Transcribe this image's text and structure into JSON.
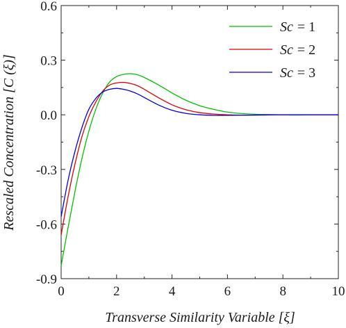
{
  "chart_data": {
    "type": "line",
    "title": "",
    "xlabel": "Transverse Similarity Variable [ξ]",
    "ylabel": "Rescaled Concentration [C (ξ)]",
    "xlim": [
      0,
      10
    ],
    "ylim": [
      -0.9,
      0.6
    ],
    "xticks": [
      "0",
      "2",
      "4",
      "6",
      "8",
      "10"
    ],
    "yticks": [
      "0.6",
      "0.3",
      "0.0",
      "-0.3",
      "-0.6",
      "-0.9"
    ],
    "grid": false,
    "legend_position": "top-right",
    "series": [
      {
        "name": "Sc = 1",
        "legend_symbol": "Sc",
        "legend_value": "= 1",
        "color": "#00c000",
        "x": [
          0,
          0.25,
          0.5,
          0.75,
          1.0,
          1.25,
          1.5,
          1.75,
          2.0,
          2.25,
          2.5,
          2.75,
          3.0,
          3.5,
          4.0,
          4.5,
          5.0,
          5.5,
          6.0,
          6.5,
          7.0,
          7.5,
          8.0,
          8.5,
          9.0,
          9.5,
          10.0
        ],
        "y": [
          -0.83,
          -0.62,
          -0.42,
          -0.24,
          -0.09,
          0.03,
          0.12,
          0.18,
          0.21,
          0.222,
          0.226,
          0.22,
          0.205,
          0.165,
          0.12,
          0.08,
          0.05,
          0.03,
          0.015,
          0.007,
          0.003,
          0.001,
          0.0,
          -0.001,
          0.0,
          0.0,
          0.0
        ]
      },
      {
        "name": "Sc = 2",
        "legend_symbol": "Sc",
        "legend_value": "= 2",
        "color": "#e00000",
        "x": [
          0,
          0.25,
          0.5,
          0.75,
          1.0,
          1.25,
          1.5,
          1.75,
          2.0,
          2.25,
          2.5,
          2.75,
          3.0,
          3.5,
          4.0,
          4.5,
          5.0,
          5.5,
          6.0,
          6.5,
          7.0,
          7.5,
          8.0,
          8.5,
          9.0,
          9.5,
          10.0
        ],
        "y": [
          -0.66,
          -0.45,
          -0.27,
          -0.12,
          -0.01,
          0.07,
          0.13,
          0.163,
          0.175,
          0.178,
          0.172,
          0.16,
          0.14,
          0.095,
          0.055,
          0.028,
          0.012,
          0.004,
          0.0,
          -0.002,
          -0.002,
          -0.001,
          0.0,
          0.0,
          0.0,
          0.0,
          0.0
        ]
      },
      {
        "name": "Sc = 3",
        "legend_symbol": "Sc",
        "legend_value": "= 3",
        "color": "#0000e0",
        "x": [
          0,
          0.25,
          0.5,
          0.75,
          1.0,
          1.25,
          1.5,
          1.75,
          2.0,
          2.25,
          2.5,
          2.75,
          3.0,
          3.5,
          4.0,
          4.5,
          5.0,
          5.5,
          6.0,
          6.5,
          7.0,
          7.5,
          8.0,
          8.5,
          9.0,
          9.5,
          10.0
        ],
        "y": [
          -0.56,
          -0.36,
          -0.2,
          -0.07,
          0.03,
          0.09,
          0.125,
          0.14,
          0.145,
          0.14,
          0.13,
          0.115,
          0.095,
          0.055,
          0.025,
          0.008,
          0.0,
          -0.003,
          -0.003,
          -0.002,
          -0.001,
          0.0,
          0.0,
          0.0,
          0.0,
          0.0,
          0.0
        ]
      }
    ]
  }
}
